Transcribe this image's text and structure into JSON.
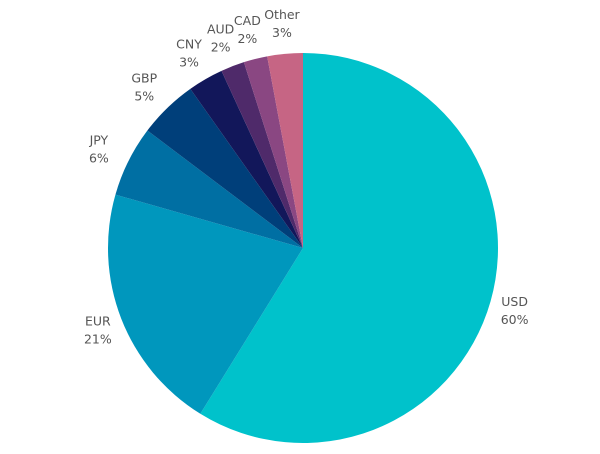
{
  "chart_data": {
    "type": "pie",
    "start": "top",
    "direction": "clockwise",
    "slices": [
      {
        "label": "USD",
        "value": 60,
        "value_label": "60%",
        "color": "#00c2cb"
      },
      {
        "label": "EUR",
        "value": 21,
        "value_label": "21%",
        "color": "#0097bd"
      },
      {
        "label": "JPY",
        "value": 6,
        "value_label": "6%",
        "color": "#006fa3"
      },
      {
        "label": "GBP",
        "value": 5,
        "value_label": "5%",
        "color": "#003f7a"
      },
      {
        "label": "CNY",
        "value": 3,
        "value_label": "3%",
        "color": "#12175a"
      },
      {
        "label": "AUD",
        "value": 2,
        "value_label": "2%",
        "color": "#4f2a6a"
      },
      {
        "label": "CAD",
        "value": 2,
        "value_label": "2%",
        "color": "#8a4782"
      },
      {
        "label": "Other",
        "value": 3,
        "value_label": "3%",
        "color": "#c66584"
      }
    ]
  }
}
